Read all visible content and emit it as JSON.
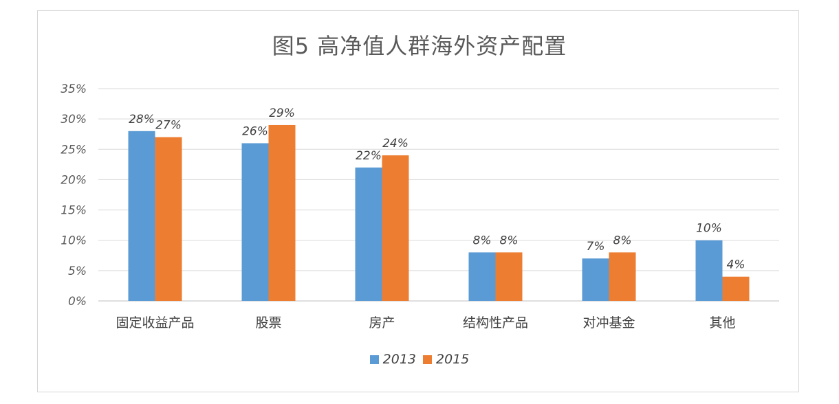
{
  "chart_data": {
    "type": "bar",
    "title": "图5 高净值人群海外资产配置",
    "categories": [
      "固定收益产品",
      "股票",
      "房产",
      "结构性产品",
      "对冲基金",
      "其他"
    ],
    "series": [
      {
        "name": "2013",
        "values": [
          28,
          26,
          22,
          8,
          7,
          10
        ],
        "color": "#5b9bd5"
      },
      {
        "name": "2015",
        "values": [
          27,
          29,
          24,
          8,
          8,
          4
        ],
        "color": "#ed7d31"
      }
    ],
    "data_labels": [
      [
        "28%",
        "26%",
        "22%",
        "8%",
        "7%",
        "10%"
      ],
      [
        "27%",
        "29%",
        "24%",
        "8%",
        "8%",
        "4%"
      ]
    ],
    "yticks": [
      "0%",
      "5%",
      "10%",
      "15%",
      "20%",
      "25%",
      "30%",
      "35%"
    ],
    "ylim": [
      0,
      35
    ],
    "grid": true,
    "legend_position": "bottom",
    "xlabel": "",
    "ylabel": ""
  }
}
